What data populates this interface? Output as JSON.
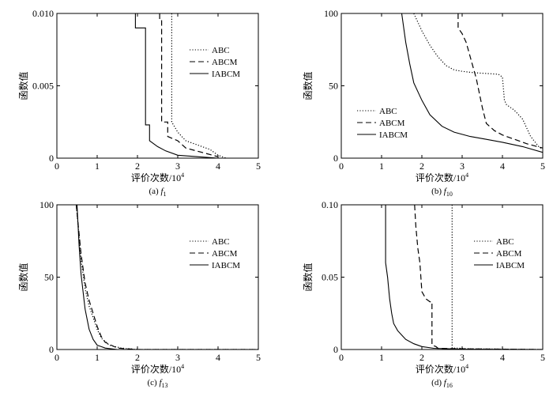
{
  "chart_data": [
    {
      "type": "line",
      "caption": "(a) f1",
      "caption_prefix": "(a)",
      "caption_func": "f",
      "caption_sub": "1",
      "xlabel": "评价次数/10",
      "xlabel_sup": "4",
      "ylabel": "函数值",
      "xlim": [
        0,
        5
      ],
      "ylim": [
        0,
        0.01
      ],
      "xticks": [
        0,
        1,
        2,
        3,
        4,
        5
      ],
      "xtick_labels": [
        "0",
        "1",
        "2",
        "3",
        "4",
        "5"
      ],
      "yticks": [
        0,
        0.005,
        0.01
      ],
      "ytick_labels": [
        "0",
        "0.005",
        "0.010"
      ],
      "legend_position": "upper-right",
      "series": [
        {
          "name": "ABC",
          "style": "dotted",
          "x": [
            2.85,
            2.85,
            3.0,
            3.2,
            3.5,
            3.8,
            4.0,
            4.2
          ],
          "y": [
            0.01,
            0.0025,
            0.0018,
            0.0012,
            0.0009,
            0.0006,
            0.0002,
            0.0
          ]
        },
        {
          "name": "ABCM",
          "style": "dashed",
          "x": [
            2.55,
            2.55,
            2.6,
            2.6,
            2.75,
            2.75,
            3.0,
            3.2,
            3.6,
            4.0
          ],
          "y": [
            0.01,
            0.0095,
            0.0095,
            0.0025,
            0.0025,
            0.0015,
            0.0012,
            0.0007,
            0.0004,
            0.0001
          ]
        },
        {
          "name": "IABCM",
          "style": "solid",
          "x": [
            1.95,
            1.95,
            2.2,
            2.2,
            2.3,
            2.3,
            2.5,
            2.7,
            3.0,
            3.5,
            4.0
          ],
          "y": [
            0.01,
            0.009,
            0.009,
            0.0023,
            0.0023,
            0.0012,
            0.0008,
            0.0005,
            0.0002,
            0.0001,
            0.0
          ]
        }
      ]
    },
    {
      "type": "line",
      "caption": "(b) f10",
      "caption_prefix": "(b)",
      "caption_func": "f",
      "caption_sub": "10",
      "xlabel": "评价次数/10",
      "xlabel_sup": "4",
      "ylabel": "函数值",
      "xlim": [
        0,
        5
      ],
      "ylim": [
        0,
        100
      ],
      "xticks": [
        0,
        1,
        2,
        3,
        4,
        5
      ],
      "xtick_labels": [
        "0",
        "1",
        "2",
        "3",
        "4",
        "5"
      ],
      "yticks": [
        0,
        50,
        100
      ],
      "ytick_labels": [
        "0",
        "50",
        "100"
      ],
      "legend_position": "lower-left",
      "series": [
        {
          "name": "ABC",
          "style": "dotted",
          "x": [
            1.8,
            2.0,
            2.2,
            2.4,
            2.6,
            2.8,
            3.0,
            3.3,
            3.6,
            3.9,
            4.0,
            4.05,
            4.1,
            4.3,
            4.5,
            4.7,
            4.9,
            5.0
          ],
          "y": [
            100,
            88,
            78,
            70,
            64,
            61,
            60,
            59,
            58.5,
            58,
            56,
            40,
            37,
            33,
            27,
            15,
            8,
            6
          ]
        },
        {
          "name": "ABCM",
          "style": "dashed",
          "x": [
            2.9,
            2.9,
            3.0,
            3.1,
            3.2,
            3.35,
            3.5,
            3.6,
            3.8,
            4.0,
            4.3,
            4.6,
            5.0
          ],
          "y": [
            100,
            90,
            86,
            80,
            70,
            55,
            35,
            24,
            19,
            16,
            13,
            10,
            7
          ]
        },
        {
          "name": "IABCM",
          "style": "solid",
          "x": [
            1.5,
            1.6,
            1.7,
            1.8,
            2.0,
            2.2,
            2.5,
            2.8,
            3.2,
            3.6,
            4.0,
            4.5,
            5.0
          ],
          "y": [
            100,
            80,
            65,
            52,
            40,
            30,
            22,
            18,
            15,
            13,
            11,
            8,
            4
          ]
        }
      ]
    },
    {
      "type": "line",
      "caption": "(c) f13",
      "caption_prefix": "(c)",
      "caption_func": "f",
      "caption_sub": "13",
      "xlabel": "评价次数/10",
      "xlabel_sup": "4",
      "ylabel": "函数值",
      "xlim": [
        0,
        5
      ],
      "ylim": [
        0,
        100
      ],
      "xticks": [
        0,
        1,
        2,
        3,
        4,
        5
      ],
      "xtick_labels": [
        "0",
        "1",
        "2",
        "3",
        "4",
        "5"
      ],
      "yticks": [
        0,
        50,
        100
      ],
      "ytick_labels": [
        "0",
        "50",
        "100"
      ],
      "legend_position": "upper-right",
      "series": [
        {
          "name": "ABC",
          "style": "dotted",
          "x": [
            0.48,
            0.55,
            0.6,
            0.7,
            0.8,
            0.9,
            1.0,
            1.1,
            1.3,
            1.6,
            2.0,
            5.0
          ],
          "y": [
            100,
            78,
            62,
            42,
            30,
            22,
            14,
            8,
            3,
            1,
            0,
            0
          ]
        },
        {
          "name": "ABCM",
          "style": "dashed",
          "x": [
            0.48,
            0.55,
            0.6,
            0.7,
            0.8,
            0.9,
            1.0,
            1.1,
            1.2,
            1.5,
            2.0,
            5.0
          ],
          "y": [
            100,
            80,
            66,
            46,
            34,
            25,
            16,
            9,
            5,
            1,
            0,
            0
          ]
        },
        {
          "name": "IABCM",
          "style": "solid",
          "x": [
            0.5,
            0.55,
            0.6,
            0.7,
            0.8,
            0.9,
            1.0,
            1.2,
            1.5,
            5.0
          ],
          "y": [
            100,
            72,
            52,
            28,
            14,
            7,
            3,
            1,
            0,
            0
          ]
        }
      ]
    },
    {
      "type": "line",
      "caption": "(d) f16",
      "caption_prefix": "(d)",
      "caption_func": "f",
      "caption_sub": "16",
      "xlabel": "评价次数/10",
      "xlabel_sup": "4",
      "ylabel": "函数值",
      "xlim": [
        0,
        5
      ],
      "ylim": [
        0,
        0.1
      ],
      "xticks": [
        0,
        1,
        2,
        3,
        4,
        5
      ],
      "xtick_labels": [
        "0",
        "1",
        "2",
        "3",
        "4",
        "5"
      ],
      "yticks": [
        0,
        0.05,
        0.1
      ],
      "ytick_labels": [
        "0",
        "0.05",
        "0.10"
      ],
      "legend_position": "upper-right",
      "series": [
        {
          "name": "ABC",
          "style": "dotted",
          "x": [
            2.75,
            2.75,
            2.85,
            3.2,
            5.0
          ],
          "y": [
            0.1,
            0.001,
            0.001,
            0.0005,
            0.0
          ]
        },
        {
          "name": "ABCM",
          "style": "dashed",
          "x": [
            1.82,
            1.85,
            1.9,
            1.95,
            2.0,
            2.1,
            2.2,
            2.25,
            2.25,
            2.35,
            2.4,
            3.0,
            5.0
          ],
          "y": [
            0.1,
            0.085,
            0.07,
            0.06,
            0.04,
            0.035,
            0.033,
            0.033,
            0.003,
            0.002,
            0.0008,
            0.0005,
            0.0
          ]
        },
        {
          "name": "IABCM",
          "style": "solid",
          "x": [
            1.1,
            1.1,
            1.15,
            1.2,
            1.25,
            1.3,
            1.4,
            1.5,
            1.6,
            1.8,
            2.0,
            2.3,
            3.0,
            5.0
          ],
          "y": [
            0.1,
            0.06,
            0.05,
            0.035,
            0.025,
            0.018,
            0.013,
            0.01,
            0.007,
            0.004,
            0.002,
            0.0008,
            0.0003,
            0.0
          ]
        }
      ]
    }
  ]
}
